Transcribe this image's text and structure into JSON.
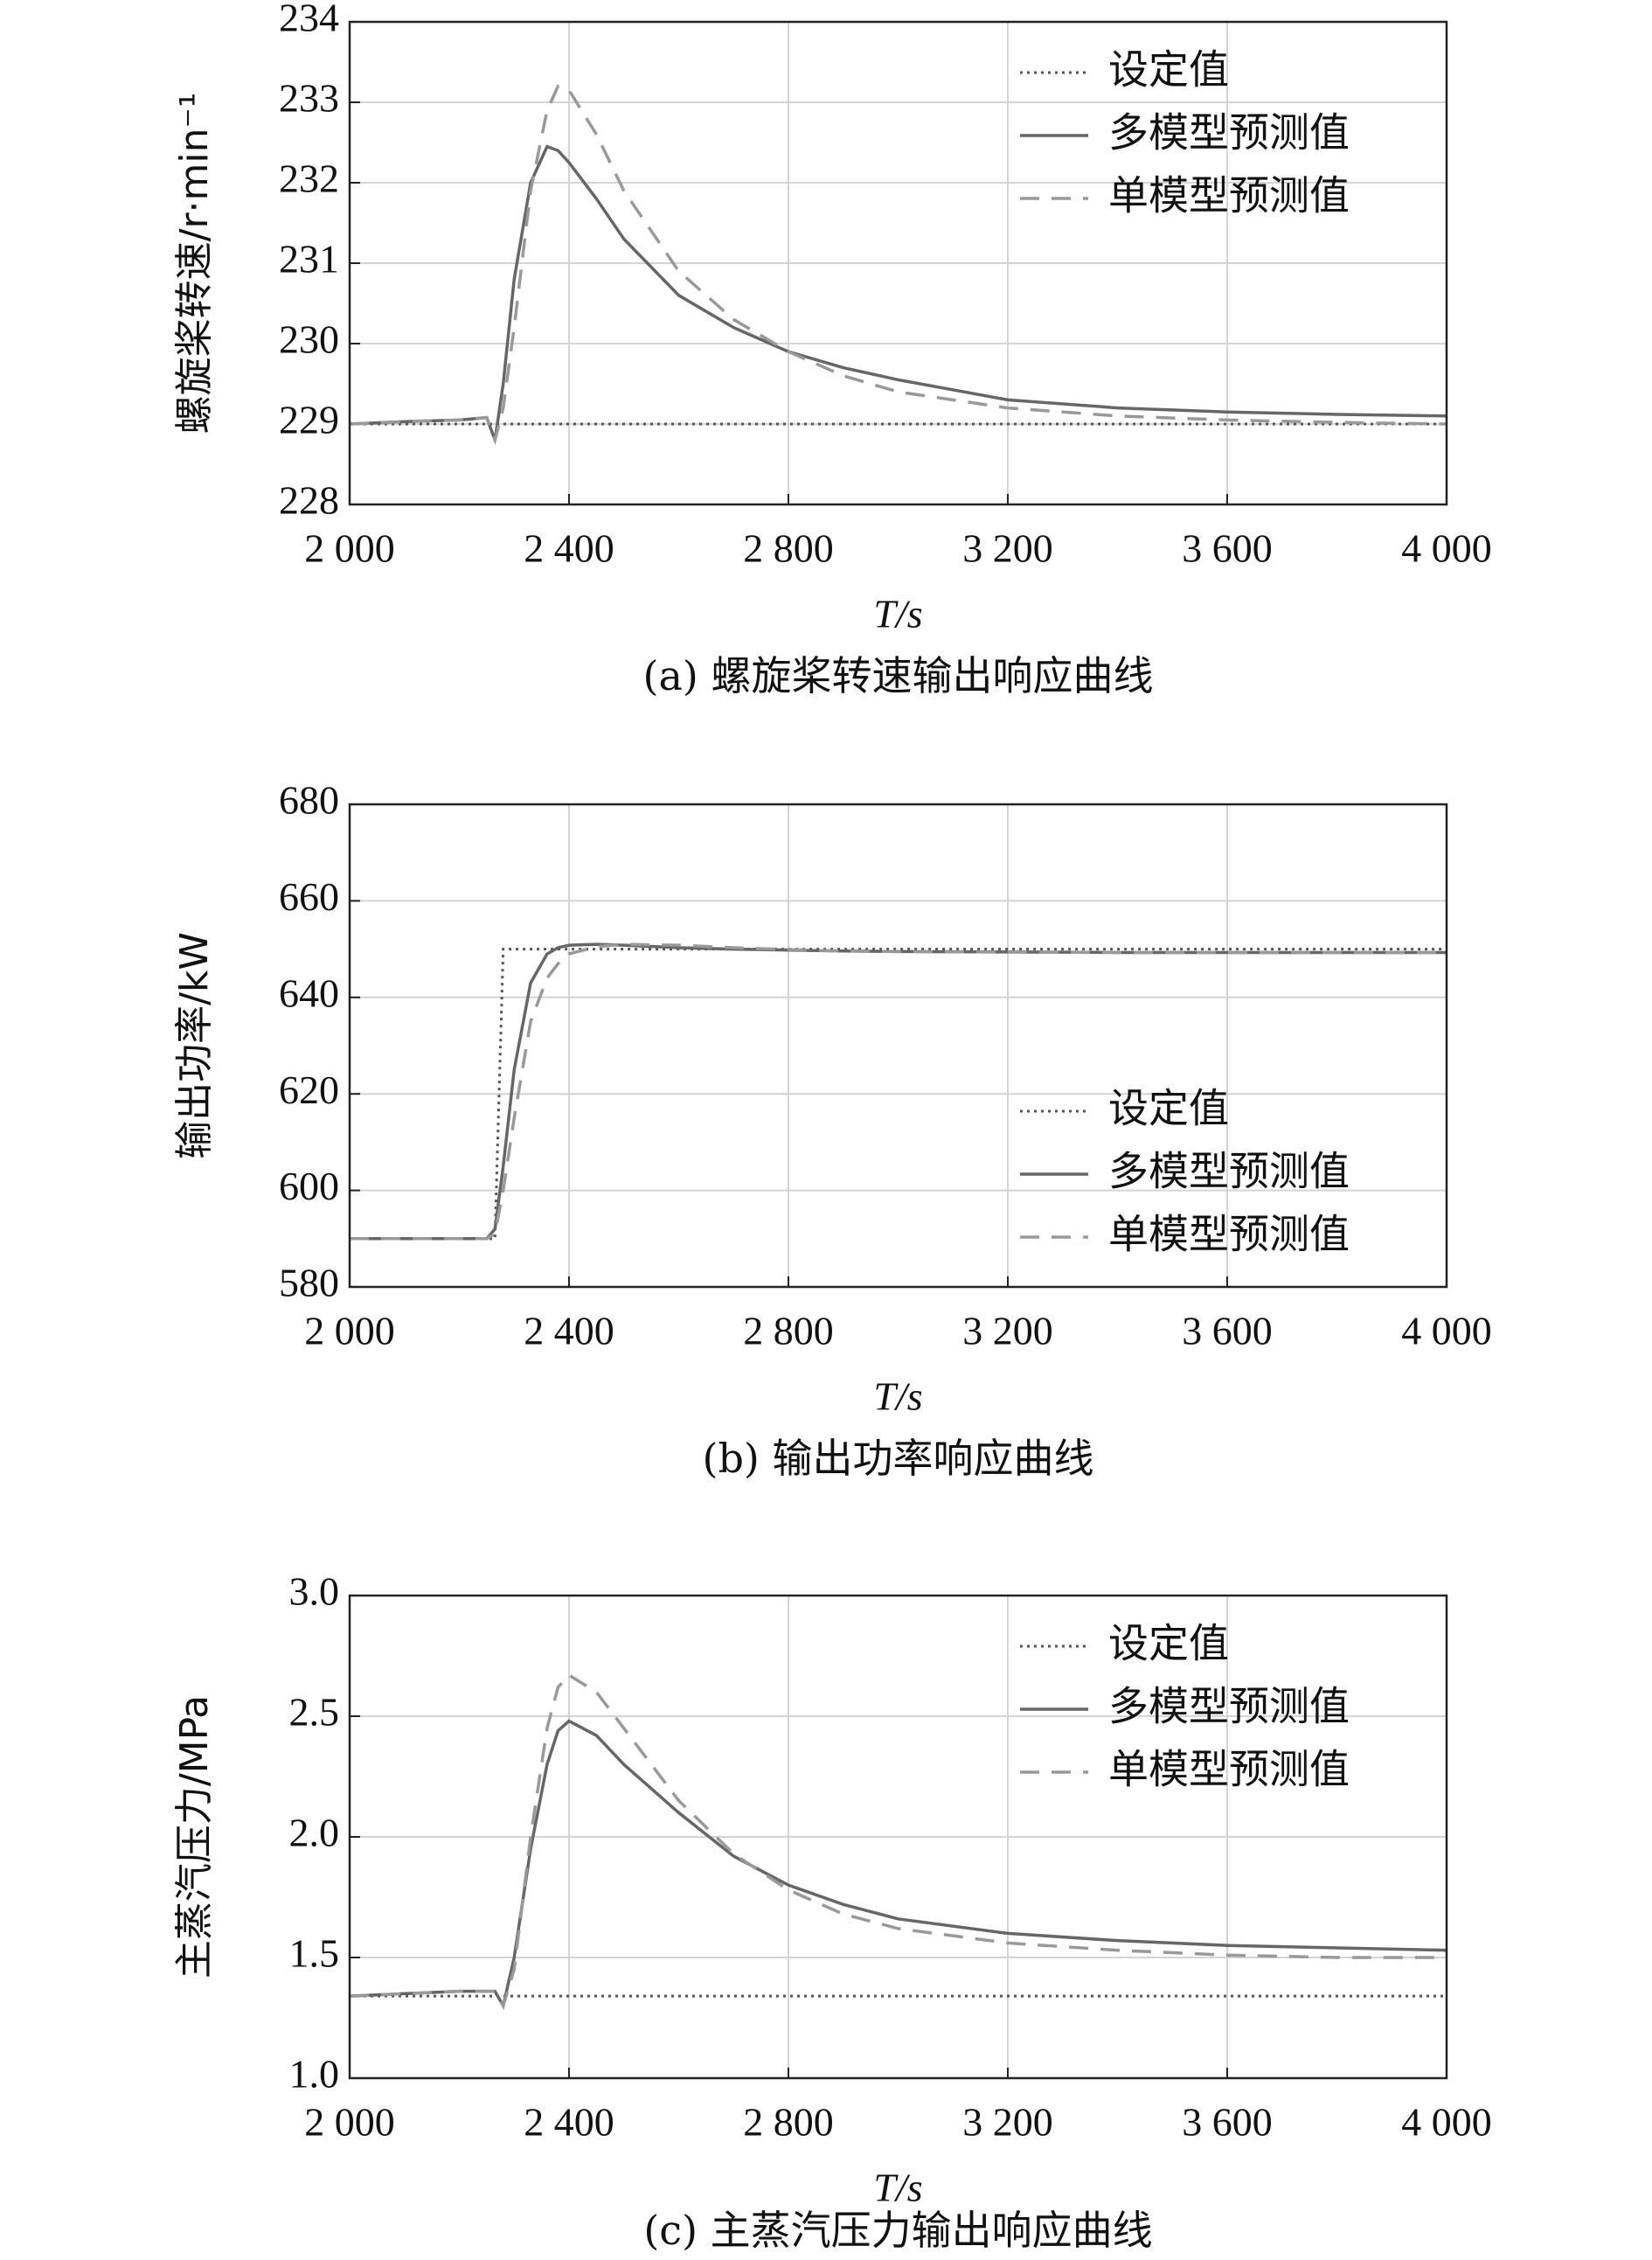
{
  "chart_data": [
    {
      "type": "line",
      "caption": "(a) 螺旋桨转速输出响应曲线",
      "ylabel": "螺旋桨转速/r·min⁻¹",
      "xlabel": "T/s",
      "x": [
        2000,
        2100,
        2200,
        2250,
        2265,
        2280,
        2300,
        2330,
        2360,
        2380,
        2400,
        2450,
        2500,
        2600,
        2700,
        2800,
        2900,
        3000,
        3200,
        3400,
        3600,
        3800,
        4000
      ],
      "xlim": [
        2000,
        4000
      ],
      "xticks": [
        {
          "value": 2000,
          "label": "2 000"
        },
        {
          "value": 2400,
          "label": "2 400"
        },
        {
          "value": 2800,
          "label": "2 800"
        },
        {
          "value": 3200,
          "label": "3 200"
        },
        {
          "value": 3600,
          "label": "3 600"
        },
        {
          "value": 4000,
          "label": "4 000"
        }
      ],
      "ylim": [
        228,
        234
      ],
      "yticks": [
        228,
        229,
        230,
        231,
        232,
        233,
        234
      ],
      "grid": true,
      "legend": "upper right",
      "series": [
        {
          "name": "设定值",
          "color": "#555555",
          "dash": "dotted",
          "values": [
            229,
            229,
            229,
            229,
            229,
            229,
            229,
            229,
            229,
            229,
            229,
            229,
            229,
            229,
            229,
            229,
            229,
            229,
            229,
            229,
            229,
            229,
            229
          ]
        },
        {
          "name": "多模型预测值",
          "color": "#666666",
          "dash": "solid",
          "values": [
            229,
            229.03,
            229.05,
            229.08,
            228.8,
            229.5,
            230.8,
            232.0,
            232.45,
            232.4,
            232.25,
            231.8,
            231.3,
            230.6,
            230.2,
            229.9,
            229.7,
            229.55,
            229.3,
            229.2,
            229.15,
            229.12,
            229.1
          ]
        },
        {
          "name": "单模型预测值",
          "color": "#999999",
          "dash": "dashed",
          "values": [
            229,
            229.03,
            229.05,
            229.08,
            228.8,
            229.2,
            230.2,
            231.9,
            232.9,
            233.2,
            233.15,
            232.6,
            231.9,
            230.9,
            230.3,
            229.9,
            229.6,
            229.4,
            229.2,
            229.1,
            229.05,
            229.02,
            229.0
          ]
        }
      ]
    },
    {
      "type": "line",
      "caption": "(b) 输出功率响应曲线",
      "ylabel": "输出功率/kW",
      "xlabel": "T/s",
      "x": [
        2000,
        2100,
        2200,
        2250,
        2265,
        2280,
        2300,
        2330,
        2360,
        2380,
        2400,
        2450,
        2500,
        2600,
        2700,
        2800,
        2900,
        3000,
        3200,
        3400,
        3600,
        3800,
        4000
      ],
      "xlim": [
        2000,
        4000
      ],
      "xticks": [
        {
          "value": 2000,
          "label": "2 000"
        },
        {
          "value": 2400,
          "label": "2 400"
        },
        {
          "value": 2800,
          "label": "2 800"
        },
        {
          "value": 3200,
          "label": "3 200"
        },
        {
          "value": 3600,
          "label": "3 600"
        },
        {
          "value": 4000,
          "label": "4 000"
        }
      ],
      "ylim": [
        580,
        680
      ],
      "yticks": [
        580,
        600,
        620,
        640,
        660,
        680
      ],
      "grid": true,
      "legend": "lower right",
      "series": [
        {
          "name": "设定值",
          "color": "#555555",
          "dash": "dotted",
          "values": [
            590,
            590,
            590,
            590,
            590,
            650,
            650,
            650,
            650,
            650,
            650,
            650,
            650,
            650,
            650,
            650,
            650,
            650,
            650,
            650,
            650,
            650,
            650
          ]
        },
        {
          "name": "多模型预测值",
          "color": "#666666",
          "dash": "solid",
          "values": [
            590,
            590,
            590,
            590,
            592,
            605,
            625,
            643,
            649,
            650.3,
            650.8,
            651,
            650.8,
            650.3,
            650,
            649.8,
            649.6,
            649.5,
            649.4,
            649.3,
            649.3,
            649.3,
            649.3
          ]
        },
        {
          "name": "单模型预测值",
          "color": "#999999",
          "dash": "dashed",
          "values": [
            590,
            590,
            590,
            590,
            591,
            600,
            615,
            635,
            644,
            647,
            649,
            650.5,
            651,
            650.8,
            650.3,
            649.9,
            649.6,
            649.5,
            649.4,
            649.3,
            649.3,
            649.3,
            649.3
          ]
        }
      ]
    },
    {
      "type": "line",
      "caption": "(c) 主蒸汽压力输出响应曲线",
      "ylabel": "主蒸汽压力/MPa",
      "xlabel": "T/s",
      "x": [
        2000,
        2100,
        2200,
        2250,
        2265,
        2280,
        2300,
        2330,
        2360,
        2380,
        2400,
        2450,
        2500,
        2600,
        2700,
        2800,
        2900,
        3000,
        3200,
        3400,
        3600,
        3800,
        4000
      ],
      "xlim": [
        2000,
        4000
      ],
      "xticks": [
        {
          "value": 2000,
          "label": "2 000"
        },
        {
          "value": 2400,
          "label": "2 400"
        },
        {
          "value": 2800,
          "label": "2 800"
        },
        {
          "value": 3200,
          "label": "3 200"
        },
        {
          "value": 3600,
          "label": "3 600"
        },
        {
          "value": 4000,
          "label": "4 000"
        }
      ],
      "ylim": [
        1.0,
        3.0
      ],
      "yticks": [
        {
          "value": 1.0,
          "label": "1.0"
        },
        1.5,
        {
          "value": 2.0,
          "label": "2.0"
        },
        2.5,
        {
          "value": 3.0,
          "label": "3.0"
        }
      ],
      "grid": true,
      "legend": "upper right",
      "series": [
        {
          "name": "设定值",
          "color": "#555555",
          "dash": "dotted",
          "values": [
            1.34,
            1.34,
            1.34,
            1.34,
            1.34,
            1.34,
            1.34,
            1.34,
            1.34,
            1.34,
            1.34,
            1.34,
            1.34,
            1.34,
            1.34,
            1.34,
            1.34,
            1.34,
            1.34,
            1.34,
            1.34,
            1.34,
            1.34
          ]
        },
        {
          "name": "多模型预测值",
          "color": "#666666",
          "dash": "solid",
          "values": [
            1.34,
            1.35,
            1.36,
            1.36,
            1.36,
            1.3,
            1.5,
            1.95,
            2.3,
            2.44,
            2.48,
            2.42,
            2.3,
            2.1,
            1.92,
            1.8,
            1.72,
            1.66,
            1.6,
            1.57,
            1.55,
            1.54,
            1.53
          ]
        },
        {
          "name": "单模型预测值",
          "color": "#999999",
          "dash": "dashed",
          "values": [
            1.34,
            1.35,
            1.36,
            1.36,
            1.36,
            1.3,
            1.45,
            2.0,
            2.45,
            2.62,
            2.67,
            2.6,
            2.45,
            2.15,
            1.93,
            1.78,
            1.68,
            1.62,
            1.56,
            1.53,
            1.51,
            1.5,
            1.5
          ]
        }
      ]
    }
  ]
}
